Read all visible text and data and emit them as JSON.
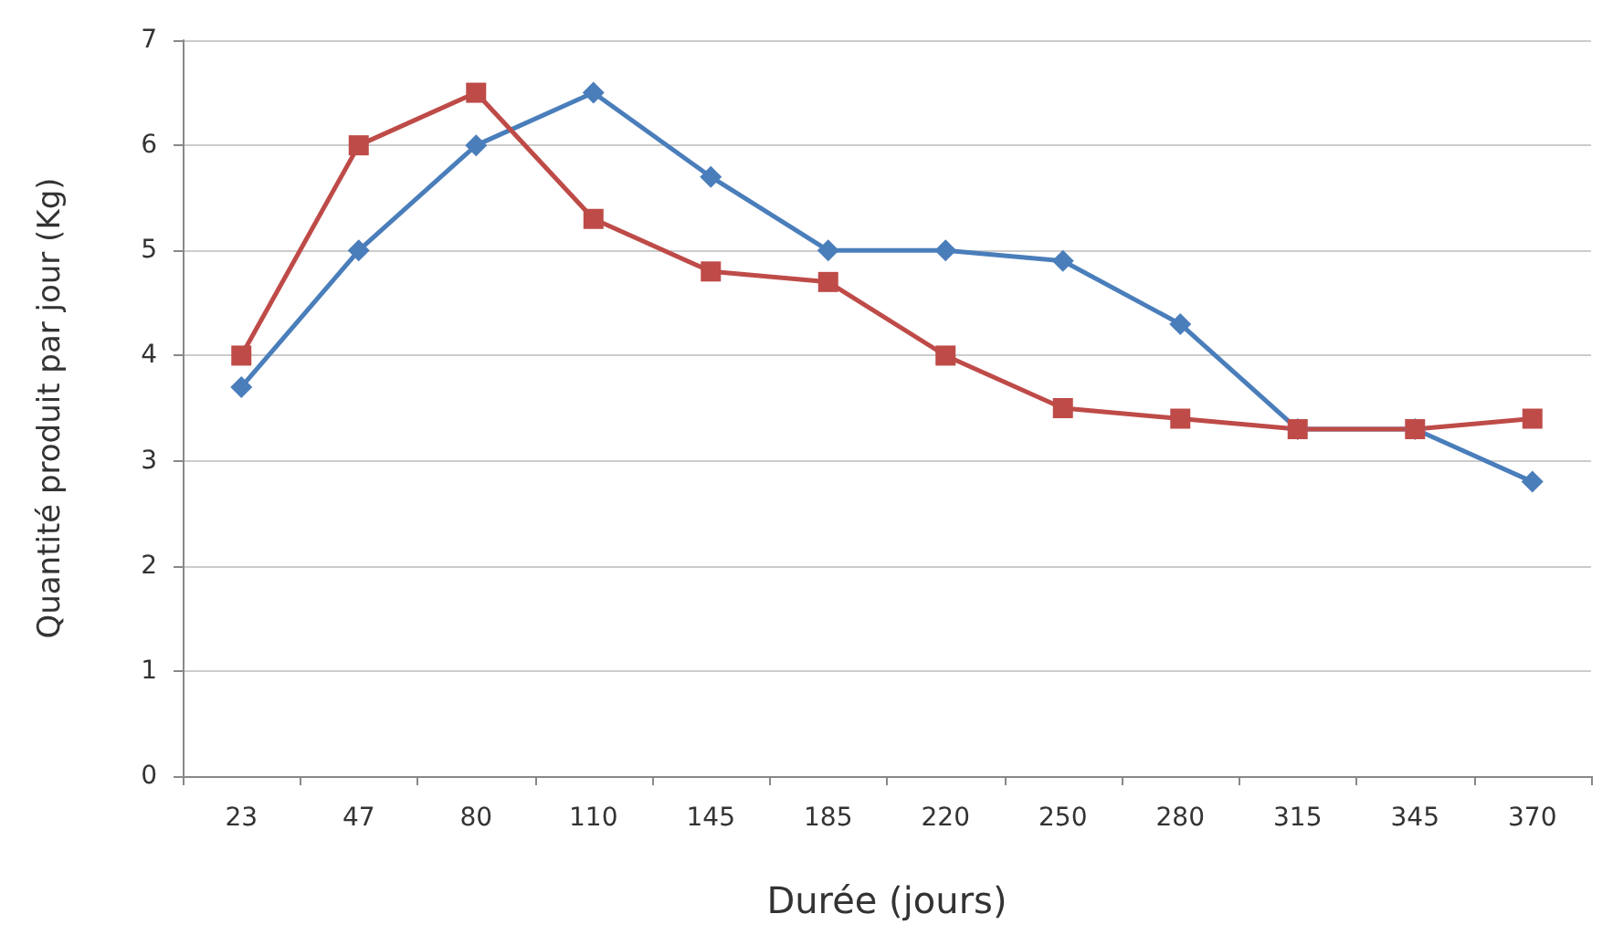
{
  "chart_data": {
    "type": "line",
    "xlabel": "Durée (jours)",
    "ylabel": "Quantité produit par jour (Kg)",
    "categories": [
      "23",
      "47",
      "80",
      "110",
      "145",
      "185",
      "220",
      "250",
      "280",
      "315",
      "345",
      "370"
    ],
    "series": [
      {
        "color": "#4a7ebb",
        "marker": "diamond",
        "values": [
          3.7,
          5.0,
          6.0,
          6.5,
          5.7,
          5.0,
          5.0,
          4.9,
          4.3,
          3.3,
          3.3,
          2.8
        ]
      },
      {
        "color": "#be4b48",
        "marker": "square",
        "values": [
          4.0,
          6.0,
          6.5,
          5.3,
          4.8,
          4.7,
          4.0,
          3.5,
          3.4,
          3.3,
          3.3,
          3.4
        ]
      }
    ],
    "ylim": [
      0,
      7
    ],
    "yticks": [
      0,
      1,
      2,
      3,
      4,
      5,
      6,
      7
    ],
    "grid": "y",
    "line_style": "solid"
  }
}
